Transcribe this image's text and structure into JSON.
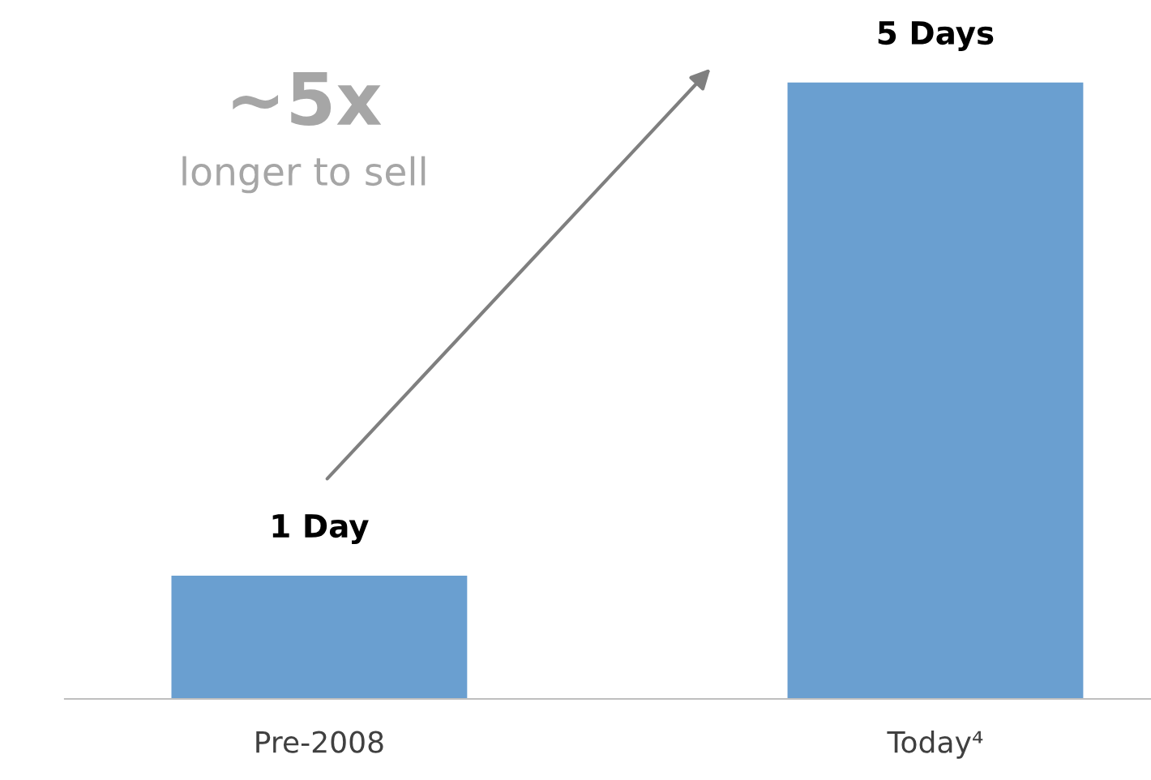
{
  "chart_data": {
    "type": "bar",
    "categories": [
      "Pre-2008",
      "Today⁴"
    ],
    "values": [
      1,
      5
    ],
    "value_labels": [
      "1 Day",
      "5 Days"
    ],
    "color": "#6a9fd0",
    "tick_labels": "x",
    "grid": false,
    "legend": false,
    "annotations": [
      "~5x",
      "longer to sell"
    ]
  }
}
